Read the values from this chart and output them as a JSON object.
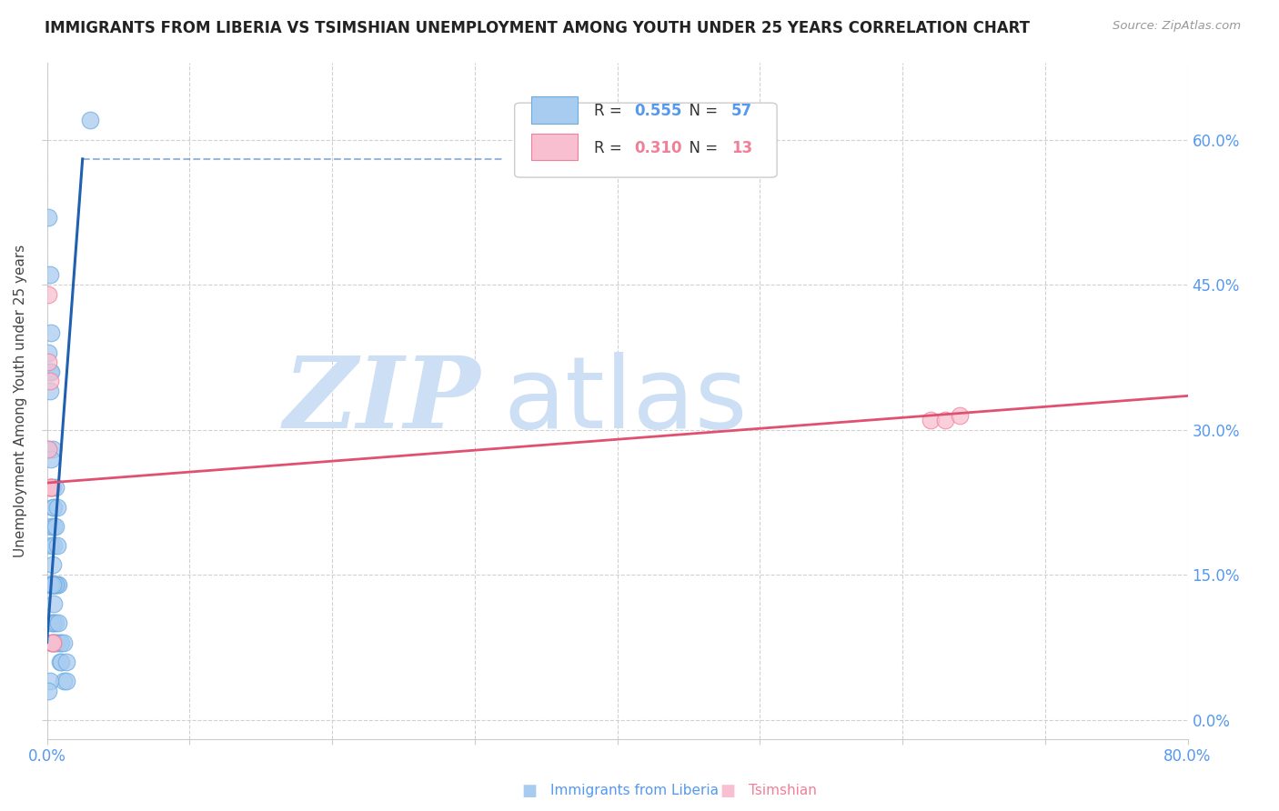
{
  "title": "IMMIGRANTS FROM LIBERIA VS TSIMSHIAN UNEMPLOYMENT AMONG YOUTH UNDER 25 YEARS CORRELATION CHART",
  "source": "Source: ZipAtlas.com",
  "ylabel_label": "Unemployment Among Youth under 25 years",
  "xlabel_label_left": "Immigrants from Liberia",
  "xlabel_label_right": "Tsimshian",
  "legend_blue_r": "0.555",
  "legend_blue_n": "57",
  "legend_pink_r": "0.310",
  "legend_pink_n": "13",
  "xlim": [
    0,
    0.8
  ],
  "ylim": [
    -0.02,
    0.68
  ],
  "yticks": [
    0.0,
    0.15,
    0.3,
    0.45,
    0.6
  ],
  "xticks": [
    0.0,
    0.1,
    0.2,
    0.3,
    0.4,
    0.5,
    0.6,
    0.7,
    0.8
  ],
  "blue_scatter_color": "#a8ccf0",
  "blue_edge_color": "#6aaae0",
  "pink_scatter_color": "#f7bfd0",
  "pink_edge_color": "#f08098",
  "blue_line_color": "#2060b0",
  "pink_line_color": "#e05070",
  "blue_scatter": [
    [
      0.001,
      0.52
    ],
    [
      0.002,
      0.46
    ],
    [
      0.001,
      0.38
    ],
    [
      0.002,
      0.36
    ],
    [
      0.002,
      0.34
    ],
    [
      0.003,
      0.4
    ],
    [
      0.003,
      0.36
    ],
    [
      0.001,
      0.28
    ],
    [
      0.004,
      0.28
    ],
    [
      0.003,
      0.27
    ],
    [
      0.004,
      0.24
    ],
    [
      0.003,
      0.24
    ],
    [
      0.006,
      0.24
    ],
    [
      0.004,
      0.22
    ],
    [
      0.003,
      0.2
    ],
    [
      0.003,
      0.18
    ],
    [
      0.004,
      0.16
    ],
    [
      0.002,
      0.14
    ],
    [
      0.003,
      0.14
    ],
    [
      0.004,
      0.14
    ],
    [
      0.005,
      0.14
    ],
    [
      0.006,
      0.14
    ],
    [
      0.007,
      0.14
    ],
    [
      0.008,
      0.14
    ],
    [
      0.005,
      0.18
    ],
    [
      0.005,
      0.2
    ],
    [
      0.005,
      0.22
    ],
    [
      0.006,
      0.2
    ],
    [
      0.007,
      0.22
    ],
    [
      0.007,
      0.18
    ],
    [
      0.003,
      0.14
    ],
    [
      0.004,
      0.14
    ],
    [
      0.005,
      0.14
    ],
    [
      0.006,
      0.14
    ],
    [
      0.003,
      0.14
    ],
    [
      0.004,
      0.14
    ],
    [
      0.005,
      0.12
    ],
    [
      0.005,
      0.1
    ],
    [
      0.004,
      0.1
    ],
    [
      0.003,
      0.1
    ],
    [
      0.006,
      0.1
    ],
    [
      0.006,
      0.08
    ],
    [
      0.005,
      0.08
    ],
    [
      0.004,
      0.08
    ],
    [
      0.007,
      0.08
    ],
    [
      0.008,
      0.1
    ],
    [
      0.009,
      0.08
    ],
    [
      0.009,
      0.06
    ],
    [
      0.01,
      0.08
    ],
    [
      0.01,
      0.06
    ],
    [
      0.012,
      0.08
    ],
    [
      0.012,
      0.04
    ],
    [
      0.014,
      0.06
    ],
    [
      0.014,
      0.04
    ],
    [
      0.002,
      0.04
    ],
    [
      0.001,
      0.03
    ],
    [
      0.03,
      0.62
    ]
  ],
  "pink_scatter": [
    [
      0.001,
      0.44
    ],
    [
      0.001,
      0.37
    ],
    [
      0.001,
      0.28
    ],
    [
      0.002,
      0.35
    ],
    [
      0.002,
      0.24
    ],
    [
      0.002,
      0.24
    ],
    [
      0.003,
      0.24
    ],
    [
      0.003,
      0.08
    ],
    [
      0.004,
      0.08
    ],
    [
      0.004,
      0.08
    ],
    [
      0.62,
      0.31
    ],
    [
      0.63,
      0.31
    ],
    [
      0.64,
      0.315
    ]
  ],
  "blue_trendline": [
    [
      0.0,
      0.08
    ],
    [
      0.025,
      0.58
    ]
  ],
  "blue_trendline_dash": [
    [
      0.025,
      0.58
    ],
    [
      0.32,
      0.58
    ]
  ],
  "pink_trendline": [
    [
      0.0,
      0.245
    ],
    [
      0.8,
      0.335
    ]
  ],
  "watermark_zip": "ZIP",
  "watermark_atlas": "atlas",
  "watermark_color": "#cddff5",
  "background_color": "#ffffff",
  "title_fontsize": 12,
  "axis_tick_color": "#5599ee",
  "right_tick_color": "#5599ee"
}
